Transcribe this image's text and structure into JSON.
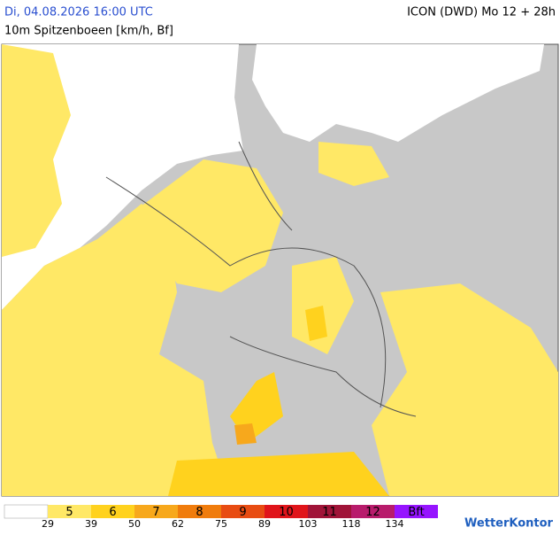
{
  "header": {
    "left": "Di, 04.08.2026 16:00 UTC",
    "right": "ICON (DWD) Mo 12 + 28h",
    "subtitle": "10m Spitzenboeen [km/h, Bf]"
  },
  "legend": {
    "base_color": "#ffffff",
    "classes": [
      {
        "label": "5",
        "color": "#ffe866"
      },
      {
        "label": "6",
        "color": "#ffd21e"
      },
      {
        "label": "7",
        "color": "#f7a81c"
      },
      {
        "label": "8",
        "color": "#f07c0c"
      },
      {
        "label": "9",
        "color": "#e84c12"
      },
      {
        "label": "10",
        "color": "#e0141a"
      },
      {
        "label": "11",
        "color": "#a01438"
      },
      {
        "label": "12",
        "color": "#b81c6c"
      },
      {
        "label": "Bft",
        "color": "#9614ff"
      }
    ],
    "thresholds": [
      29,
      39,
      50,
      62,
      75,
      89,
      103,
      118,
      134
    ]
  },
  "logo": "WetterKontor"
}
